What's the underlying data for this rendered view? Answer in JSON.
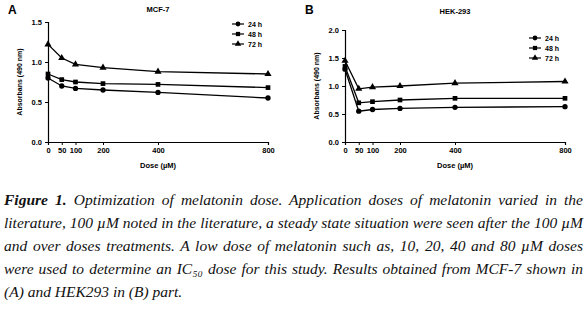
{
  "chart_data": [
    {
      "type": "line",
      "title": "MCF-7",
      "annotations": [
        "A"
      ],
      "x_label": "Dose (µM)",
      "y_label": "Absorbans (490 nm)",
      "x": [
        0,
        50,
        100,
        200,
        400,
        800
      ],
      "xlim": [
        0,
        800
      ],
      "xticks": [
        0,
        50,
        100,
        200,
        400,
        800
      ],
      "ylim": [
        0,
        1.5
      ],
      "yticks": [
        {
          "value": 0,
          "label": "0.0"
        },
        0.5,
        {
          "value": 1,
          "label": "1.0"
        },
        1.5
      ],
      "legend": "upper right",
      "series": [
        {
          "name": "24 h",
          "color": "#000000",
          "marker": "circle",
          "values": [
            0.8,
            0.7,
            0.67,
            0.65,
            0.62,
            0.55
          ]
        },
        {
          "name": "48 h",
          "color": "#000000",
          "marker": "square",
          "values": [
            0.85,
            0.78,
            0.75,
            0.73,
            0.72,
            0.68
          ]
        },
        {
          "name": "72 h",
          "color": "#000000",
          "marker": "triangle",
          "values": [
            1.22,
            1.05,
            0.97,
            0.93,
            0.88,
            0.85
          ]
        }
      ]
    },
    {
      "type": "line",
      "title": "HEK-293",
      "annotations": [
        "B"
      ],
      "x_label": "Dose (µM)",
      "y_label": "Absorbans (490 nm)",
      "x": [
        0,
        50,
        100,
        200,
        400,
        800
      ],
      "xlim": [
        0,
        800
      ],
      "xticks": [
        0,
        50,
        100,
        200,
        400,
        800
      ],
      "ylim": [
        0,
        2
      ],
      "yticks": [
        {
          "value": 0,
          "label": "0.0"
        },
        0.5,
        {
          "value": 1,
          "label": "1.0"
        },
        1.5,
        {
          "value": 2,
          "label": "2.0"
        }
      ],
      "legend": "upper right",
      "series": [
        {
          "name": "24 h",
          "color": "#000000",
          "marker": "circle",
          "values": [
            1.3,
            0.55,
            0.58,
            0.6,
            0.62,
            0.63
          ]
        },
        {
          "name": "48 h",
          "color": "#000000",
          "marker": "square",
          "values": [
            1.35,
            0.7,
            0.72,
            0.75,
            0.78,
            0.78
          ]
        },
        {
          "name": "72 h",
          "color": "#000000",
          "marker": "triangle",
          "values": [
            1.45,
            0.95,
            0.98,
            1.0,
            1.05,
            1.08
          ]
        }
      ]
    }
  ],
  "caption": {
    "label": "Figure 1.",
    "text": "Optimization of melatonin dose. Application doses of melatonin varied in the literature, 100 µM noted in the literature, a steady state situation were seen after the 100 µM and over doses treatments. A low dose of melatonin such as, 10, 20, 40 and 80 µM doses were used to determine an IC₅₀ dose for this study. Results obtained from MCF-7 shown in (A) and HEK293 in (B) part."
  }
}
